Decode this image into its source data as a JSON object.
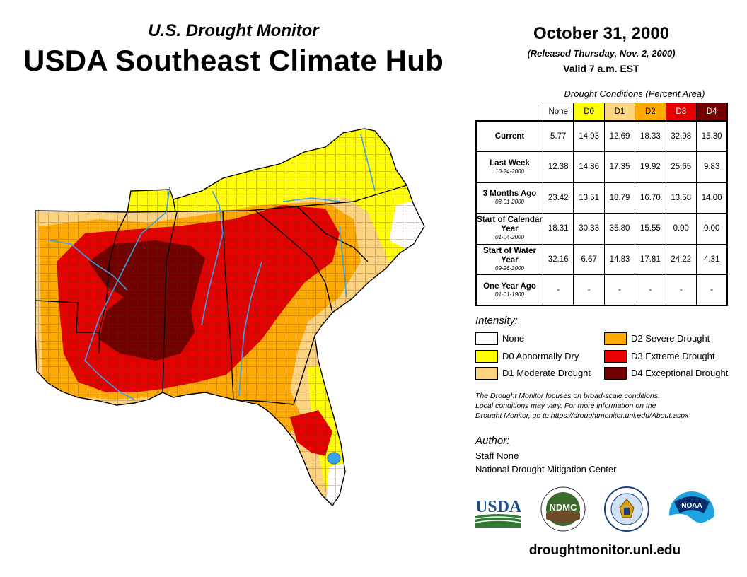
{
  "header": {
    "subtitle": "U.S. Drought Monitor",
    "title": "USDA Southeast Climate Hub",
    "date": "October 31, 2000",
    "released": "(Released Thursday, Nov. 2, 2000)",
    "valid": "Valid 7 a.m. EST"
  },
  "table": {
    "caption": "Drought Conditions (Percent Area)",
    "columns": [
      "None",
      "D0",
      "D1",
      "D2",
      "D3",
      "D4"
    ],
    "column_colors": [
      "#ffffff",
      "#ffff00",
      "#fcd37f",
      "#ffaa00",
      "#e60000",
      "#730000"
    ],
    "column_text_colors": [
      "#000000",
      "#000000",
      "#000000",
      "#000000",
      "#ffffff",
      "#ffffff"
    ],
    "rows": [
      {
        "label": "Current",
        "sublabel": "",
        "values": [
          "5.77",
          "14.93",
          "12.69",
          "18.33",
          "32.98",
          "15.30"
        ]
      },
      {
        "label": "Last Week",
        "sublabel": "10-24-2000",
        "values": [
          "12.38",
          "14.86",
          "17.35",
          "19.92",
          "25.65",
          "9.83"
        ]
      },
      {
        "label": "3 Months Ago",
        "sublabel": "08-01-2000",
        "values": [
          "23.42",
          "13.51",
          "18.79",
          "16.70",
          "13.58",
          "14.00"
        ]
      },
      {
        "label": "Start of Calendar Year",
        "sublabel": "01-04-2000",
        "values": [
          "18.31",
          "30.33",
          "35.80",
          "15.55",
          "0.00",
          "0.00"
        ]
      },
      {
        "label": "Start of Water Year",
        "sublabel": "09-26-2000",
        "values": [
          "32.16",
          "6.67",
          "14.83",
          "17.81",
          "24.22",
          "4.31"
        ]
      },
      {
        "label": "One Year Ago",
        "sublabel": "01-01-1900",
        "values": [
          "-",
          "-",
          "-",
          "-",
          "-",
          "-"
        ]
      }
    ]
  },
  "legend": {
    "title": "Intensity:",
    "items": [
      {
        "label": "None",
        "color": "#ffffff"
      },
      {
        "label": "D0 Abnormally Dry",
        "color": "#ffff00"
      },
      {
        "label": "D1 Moderate Drought",
        "color": "#fcd37f"
      },
      {
        "label": "D2 Severe Drought",
        "color": "#ffaa00"
      },
      {
        "label": "D3 Extreme Drought",
        "color": "#e60000"
      },
      {
        "label": "D4 Exceptional Drought",
        "color": "#730000"
      }
    ]
  },
  "note": {
    "line1": "The Drought Monitor focuses on broad-scale conditions.",
    "line2": "Local conditions may vary. For more information on the",
    "line3": "Drought Monitor, go to https://droughtmonitor.unl.edu/About.aspx"
  },
  "author": {
    "title": "Author:",
    "name": "Staff None",
    "org": "National Drought Mitigation Center"
  },
  "logos": {
    "usda": "USDA",
    "ndmc": "NDMC",
    "noaa": "NOAA"
  },
  "footer": {
    "url": "droughtmonitor.unl.edu"
  },
  "colors": {
    "water": "#3ca0e6",
    "county_line": "#7a4a2a",
    "state_line": "#000000"
  }
}
